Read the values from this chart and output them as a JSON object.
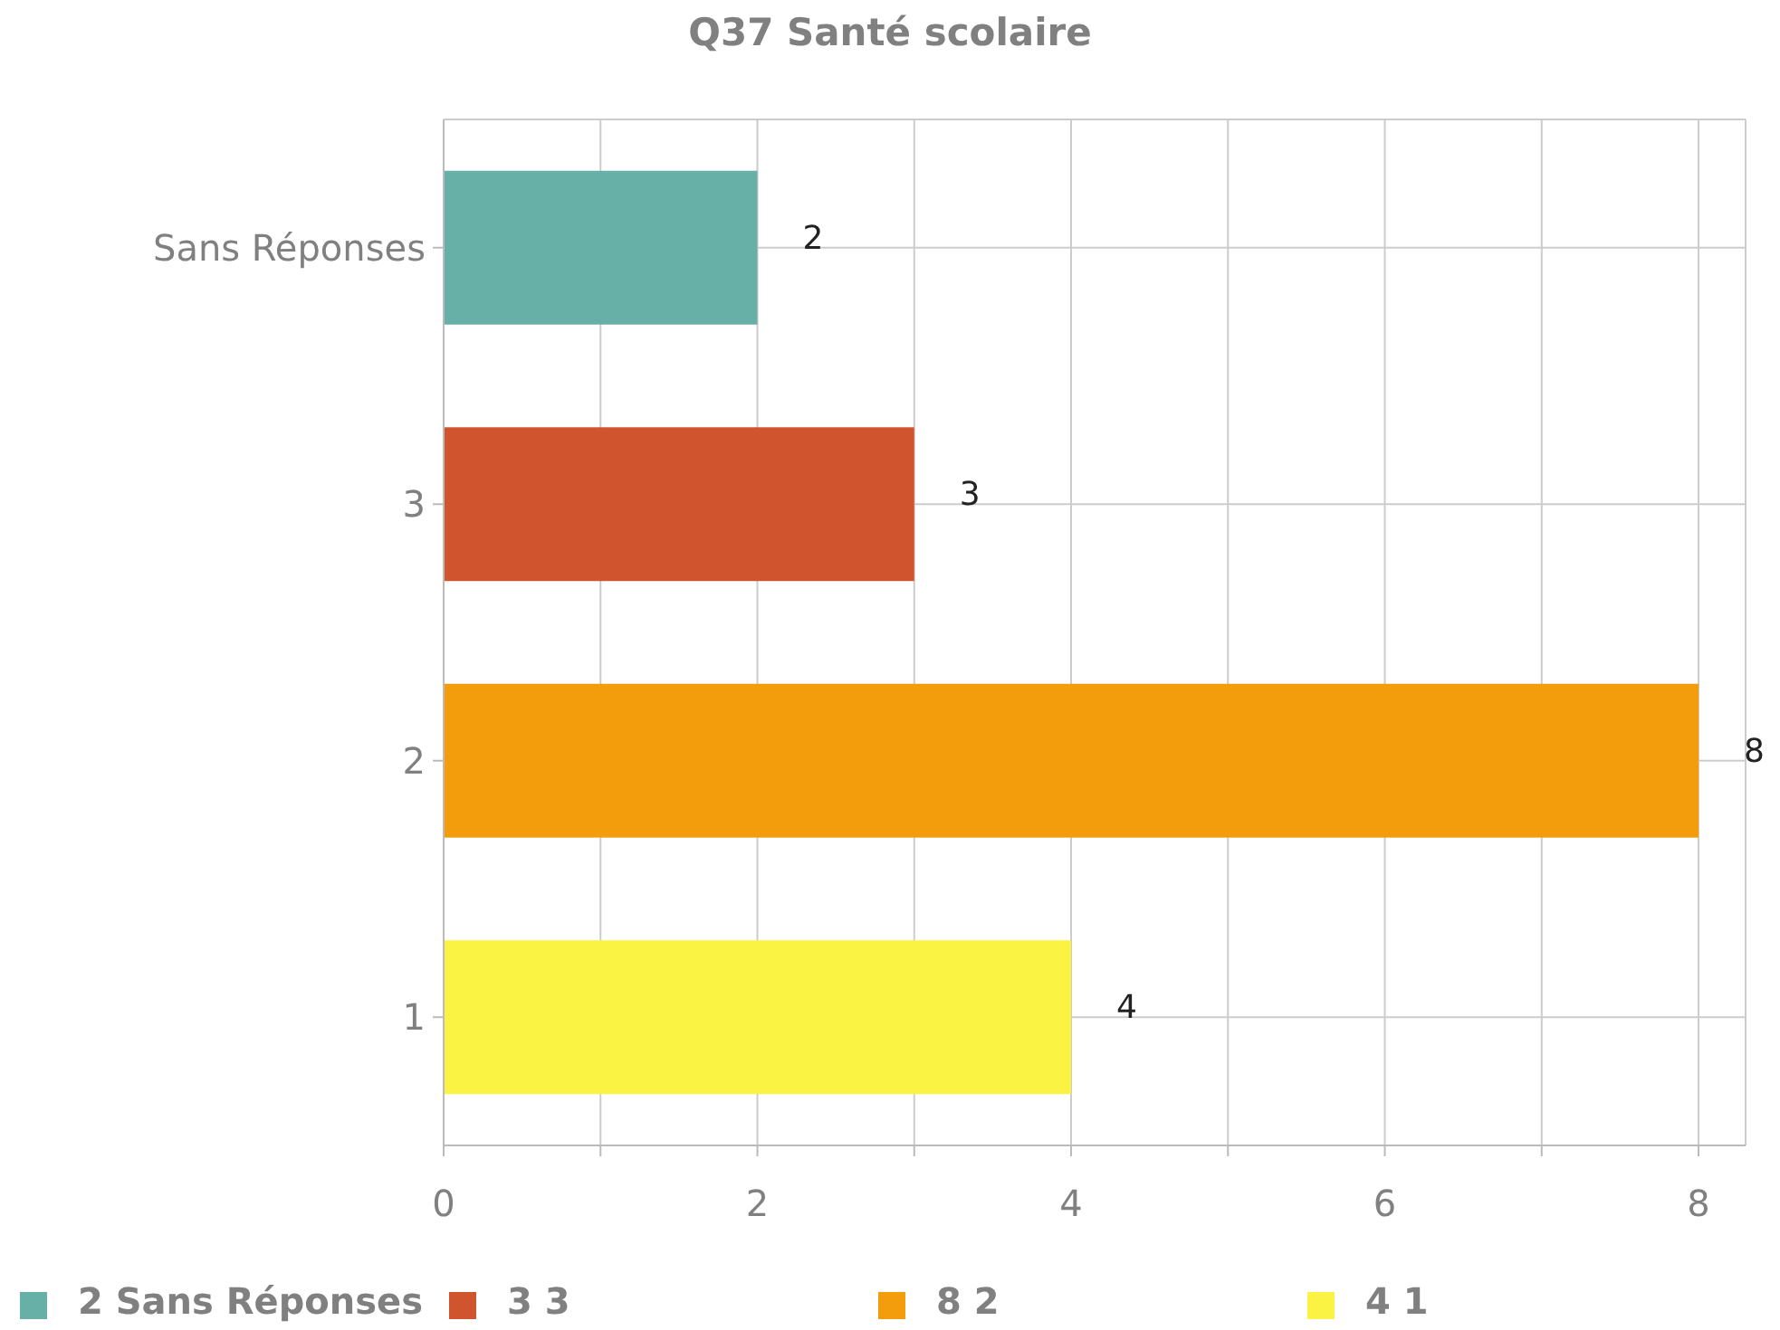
{
  "chart_data": {
    "type": "bar",
    "title": "Q37 Santé scolaire",
    "orientation": "horizontal",
    "stacked": true,
    "categories": [
      "Sans Réponses",
      "3",
      "2",
      "1"
    ],
    "series": [
      {
        "name": "2 Sans Réponses",
        "color": "#67b0a8",
        "values": [
          2,
          null,
          null,
          null
        ]
      },
      {
        "name": "3 3",
        "color": "#d0552f",
        "values": [
          null,
          3,
          null,
          null
        ]
      },
      {
        "name": "8 2",
        "color": "#f39c0c",
        "values": [
          null,
          null,
          8,
          null
        ]
      },
      {
        "name": "4 1",
        "color": "#fbf344",
        "values": [
          null,
          null,
          null,
          4
        ]
      }
    ],
    "xlim": [
      0,
      8.3
    ],
    "xticks": [
      0,
      {
        "value": 1,
        "label": null
      },
      2,
      {
        "value": 3,
        "label": null
      },
      4,
      {
        "value": 5,
        "label": null
      },
      6,
      {
        "value": 7,
        "label": null
      },
      8
    ],
    "grid": true,
    "legend": "bottom left",
    "data_labels": true
  }
}
